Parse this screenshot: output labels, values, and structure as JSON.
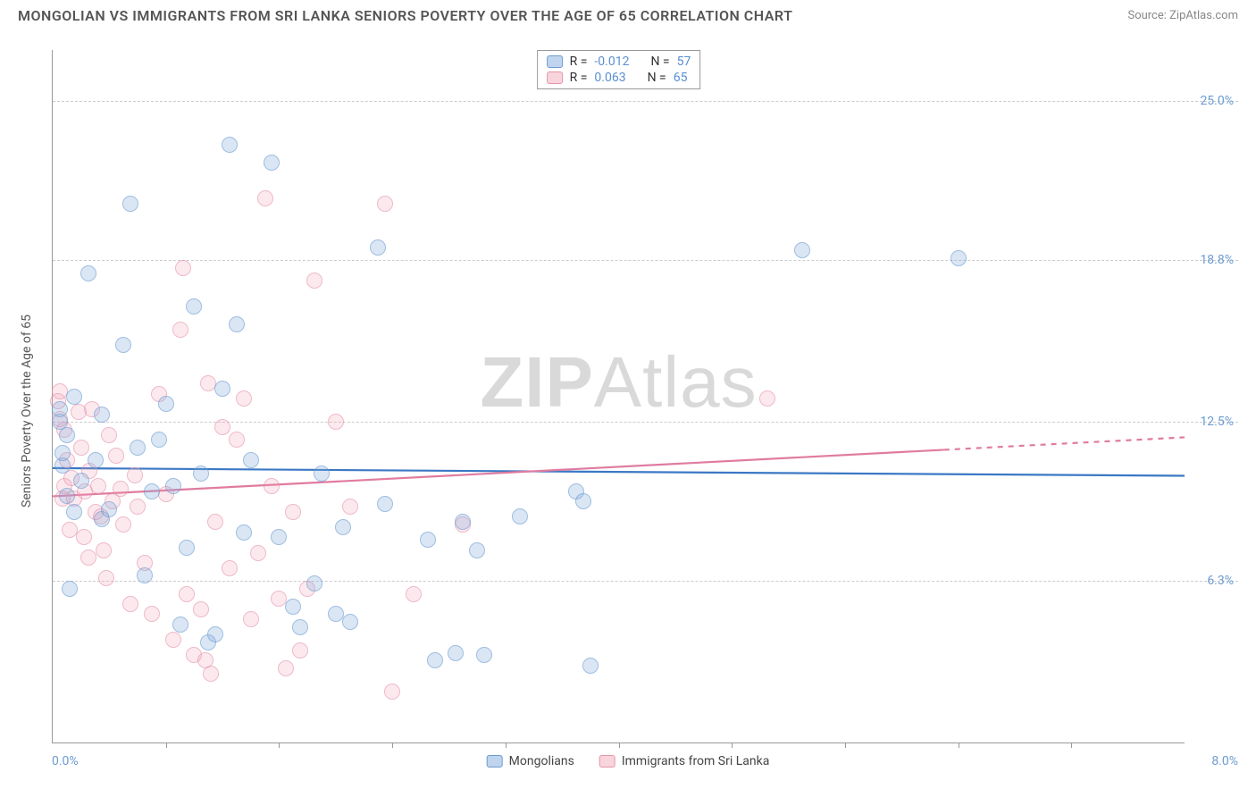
{
  "title": "MONGOLIAN VS IMMIGRANTS FROM SRI LANKA SENIORS POVERTY OVER THE AGE OF 65 CORRELATION CHART",
  "source": "Source: ZipAtlas.com",
  "ylabel": "Seniors Poverty Over the Age of 65",
  "watermark_a": "ZIP",
  "watermark_b": "Atlas",
  "chart": {
    "type": "scatter",
    "xlim": [
      0.0,
      8.0
    ],
    "ylim": [
      0.0,
      27.0
    ],
    "xticks_minor": [
      0.8,
      1.6,
      2.4,
      3.2,
      4.0,
      4.8,
      5.6,
      6.4,
      7.2
    ],
    "yticks": [
      6.3,
      12.5,
      18.8,
      25.0
    ],
    "ytick_labels": [
      "6.3%",
      "12.5%",
      "18.8%",
      "25.0%"
    ],
    "xlabel_min": "0.0%",
    "xlabel_max": "8.0%",
    "grid_color": "#cccccc",
    "background_color": "#ffffff",
    "series": [
      {
        "name": "Mongolians",
        "color_fill": "rgba(130,170,220,0.45)",
        "color_stroke": "#6b9bd1",
        "R": "-0.012",
        "N": "57",
        "trend": {
          "y_at_xmin": 10.7,
          "y_at_xmax": 10.4,
          "solid_until_x": 8.0
        },
        "points": [
          [
            0.05,
            13.0
          ],
          [
            0.05,
            12.5
          ],
          [
            0.07,
            10.8
          ],
          [
            0.07,
            11.3
          ],
          [
            0.1,
            12.0
          ],
          [
            0.1,
            9.6
          ],
          [
            0.12,
            6.0
          ],
          [
            0.15,
            9.0
          ],
          [
            0.15,
            13.5
          ],
          [
            0.2,
            10.2
          ],
          [
            0.25,
            18.3
          ],
          [
            0.3,
            11.0
          ],
          [
            0.35,
            12.8
          ],
          [
            0.35,
            8.7
          ],
          [
            0.4,
            9.1
          ],
          [
            0.5,
            15.5
          ],
          [
            0.55,
            21.0
          ],
          [
            0.6,
            11.5
          ],
          [
            0.65,
            6.5
          ],
          [
            0.7,
            9.8
          ],
          [
            0.75,
            11.8
          ],
          [
            0.8,
            13.2
          ],
          [
            0.85,
            10.0
          ],
          [
            0.9,
            4.6
          ],
          [
            0.95,
            7.6
          ],
          [
            1.0,
            17.0
          ],
          [
            1.05,
            10.5
          ],
          [
            1.1,
            3.9
          ],
          [
            1.15,
            4.2
          ],
          [
            1.2,
            13.8
          ],
          [
            1.25,
            23.3
          ],
          [
            1.3,
            16.3
          ],
          [
            1.35,
            8.2
          ],
          [
            1.4,
            11.0
          ],
          [
            1.55,
            22.6
          ],
          [
            1.6,
            8.0
          ],
          [
            1.7,
            5.3
          ],
          [
            1.75,
            4.5
          ],
          [
            1.85,
            6.2
          ],
          [
            1.9,
            10.5
          ],
          [
            2.0,
            5.0
          ],
          [
            2.05,
            8.4
          ],
          [
            2.1,
            4.7
          ],
          [
            2.3,
            19.3
          ],
          [
            2.35,
            9.3
          ],
          [
            2.65,
            7.9
          ],
          [
            2.7,
            3.2
          ],
          [
            2.85,
            3.5
          ],
          [
            2.9,
            8.6
          ],
          [
            3.0,
            7.5
          ],
          [
            3.05,
            3.4
          ],
          [
            3.3,
            8.8
          ],
          [
            3.7,
            9.8
          ],
          [
            3.75,
            9.4
          ],
          [
            3.8,
            3.0
          ],
          [
            5.3,
            19.2
          ],
          [
            6.4,
            18.9
          ]
        ]
      },
      {
        "name": "Immigrants from Sri Lanka",
        "color_fill": "rgba(240,160,180,0.35)",
        "color_stroke": "#e594ac",
        "R": "0.063",
        "N": "65",
        "trend": {
          "y_at_xmin": 9.6,
          "y_at_xmax": 11.9,
          "solid_until_x": 6.3
        },
        "points": [
          [
            0.04,
            13.3
          ],
          [
            0.05,
            12.6
          ],
          [
            0.05,
            13.7
          ],
          [
            0.07,
            9.5
          ],
          [
            0.08,
            10.0
          ],
          [
            0.08,
            12.2
          ],
          [
            0.1,
            11.0
          ],
          [
            0.12,
            8.3
          ],
          [
            0.13,
            10.3
          ],
          [
            0.15,
            9.5
          ],
          [
            0.18,
            12.9
          ],
          [
            0.2,
            11.5
          ],
          [
            0.22,
            8.0
          ],
          [
            0.23,
            9.8
          ],
          [
            0.25,
            7.2
          ],
          [
            0.26,
            10.6
          ],
          [
            0.28,
            13.0
          ],
          [
            0.3,
            9.0
          ],
          [
            0.32,
            10.0
          ],
          [
            0.34,
            8.8
          ],
          [
            0.36,
            7.5
          ],
          [
            0.38,
            6.4
          ],
          [
            0.4,
            12.0
          ],
          [
            0.42,
            9.4
          ],
          [
            0.45,
            11.2
          ],
          [
            0.48,
            9.9
          ],
          [
            0.5,
            8.5
          ],
          [
            0.55,
            5.4
          ],
          [
            0.58,
            10.4
          ],
          [
            0.6,
            9.2
          ],
          [
            0.65,
            7.0
          ],
          [
            0.7,
            5.0
          ],
          [
            0.75,
            13.6
          ],
          [
            0.8,
            9.7
          ],
          [
            0.85,
            4.0
          ],
          [
            0.9,
            16.1
          ],
          [
            0.92,
            18.5
          ],
          [
            0.95,
            5.8
          ],
          [
            1.0,
            3.4
          ],
          [
            1.05,
            5.2
          ],
          [
            1.08,
            3.2
          ],
          [
            1.1,
            14.0
          ],
          [
            1.12,
            2.7
          ],
          [
            1.15,
            8.6
          ],
          [
            1.2,
            12.3
          ],
          [
            1.25,
            6.8
          ],
          [
            1.3,
            11.8
          ],
          [
            1.35,
            13.4
          ],
          [
            1.4,
            4.8
          ],
          [
            1.45,
            7.4
          ],
          [
            1.5,
            21.2
          ],
          [
            1.55,
            10.0
          ],
          [
            1.6,
            5.6
          ],
          [
            1.65,
            2.9
          ],
          [
            1.7,
            9.0
          ],
          [
            1.75,
            3.6
          ],
          [
            1.8,
            6.0
          ],
          [
            1.85,
            18.0
          ],
          [
            2.0,
            12.5
          ],
          [
            2.1,
            9.2
          ],
          [
            2.35,
            21.0
          ],
          [
            2.4,
            2.0
          ],
          [
            2.55,
            5.8
          ],
          [
            2.9,
            8.5
          ],
          [
            5.05,
            13.4
          ]
        ]
      }
    ]
  },
  "corr_legend": {
    "label_R": "R =",
    "label_N": "N ="
  },
  "bottom_legend": {
    "items": [
      "Mongolians",
      "Immigrants from Sri Lanka"
    ]
  }
}
